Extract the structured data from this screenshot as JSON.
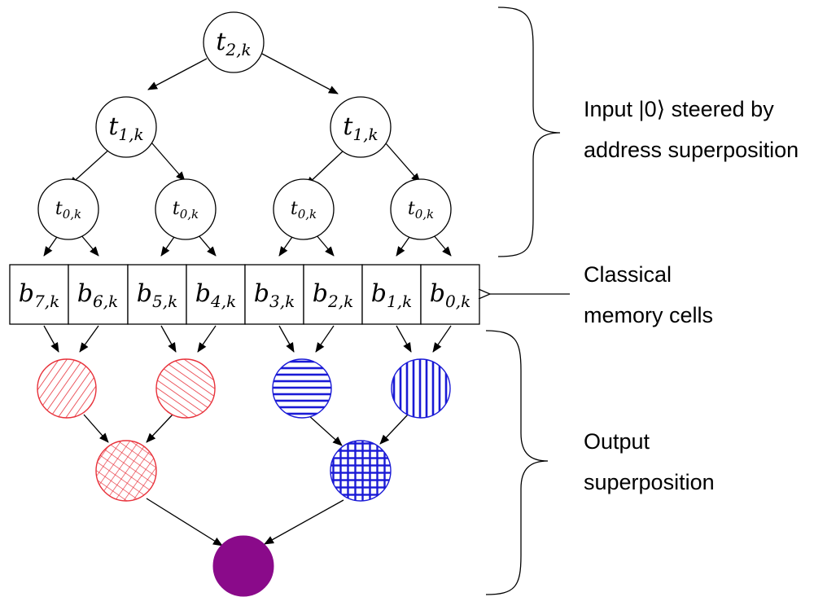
{
  "tree_nodes": [
    {
      "var": "t",
      "sub": "2,k"
    },
    {
      "var": "t",
      "sub": "1,k"
    },
    {
      "var": "t",
      "sub": "1,k"
    },
    {
      "var": "t",
      "sub": "0,k"
    },
    {
      "var": "t",
      "sub": "0,k"
    },
    {
      "var": "t",
      "sub": "0,k"
    },
    {
      "var": "t",
      "sub": "0,k"
    }
  ],
  "memory_cells": [
    {
      "var": "b",
      "sub": "7,k"
    },
    {
      "var": "b",
      "sub": "6,k"
    },
    {
      "var": "b",
      "sub": "5,k"
    },
    {
      "var": "b",
      "sub": "4,k"
    },
    {
      "var": "b",
      "sub": "3,k"
    },
    {
      "var": "b",
      "sub": "2,k"
    },
    {
      "var": "b",
      "sub": "1,k"
    },
    {
      "var": "b",
      "sub": "0,k"
    }
  ],
  "labels": {
    "input_line1": "Input |0⟩ steered by",
    "input_line2": "address superposition",
    "memory_line1": "Classical",
    "memory_line2": "memory cells",
    "output_line1": "Output",
    "output_line2": "superposition"
  },
  "colors": {
    "red": "#e8313a",
    "blue": "#1a1ad6",
    "purple": "#8a0a8a"
  }
}
